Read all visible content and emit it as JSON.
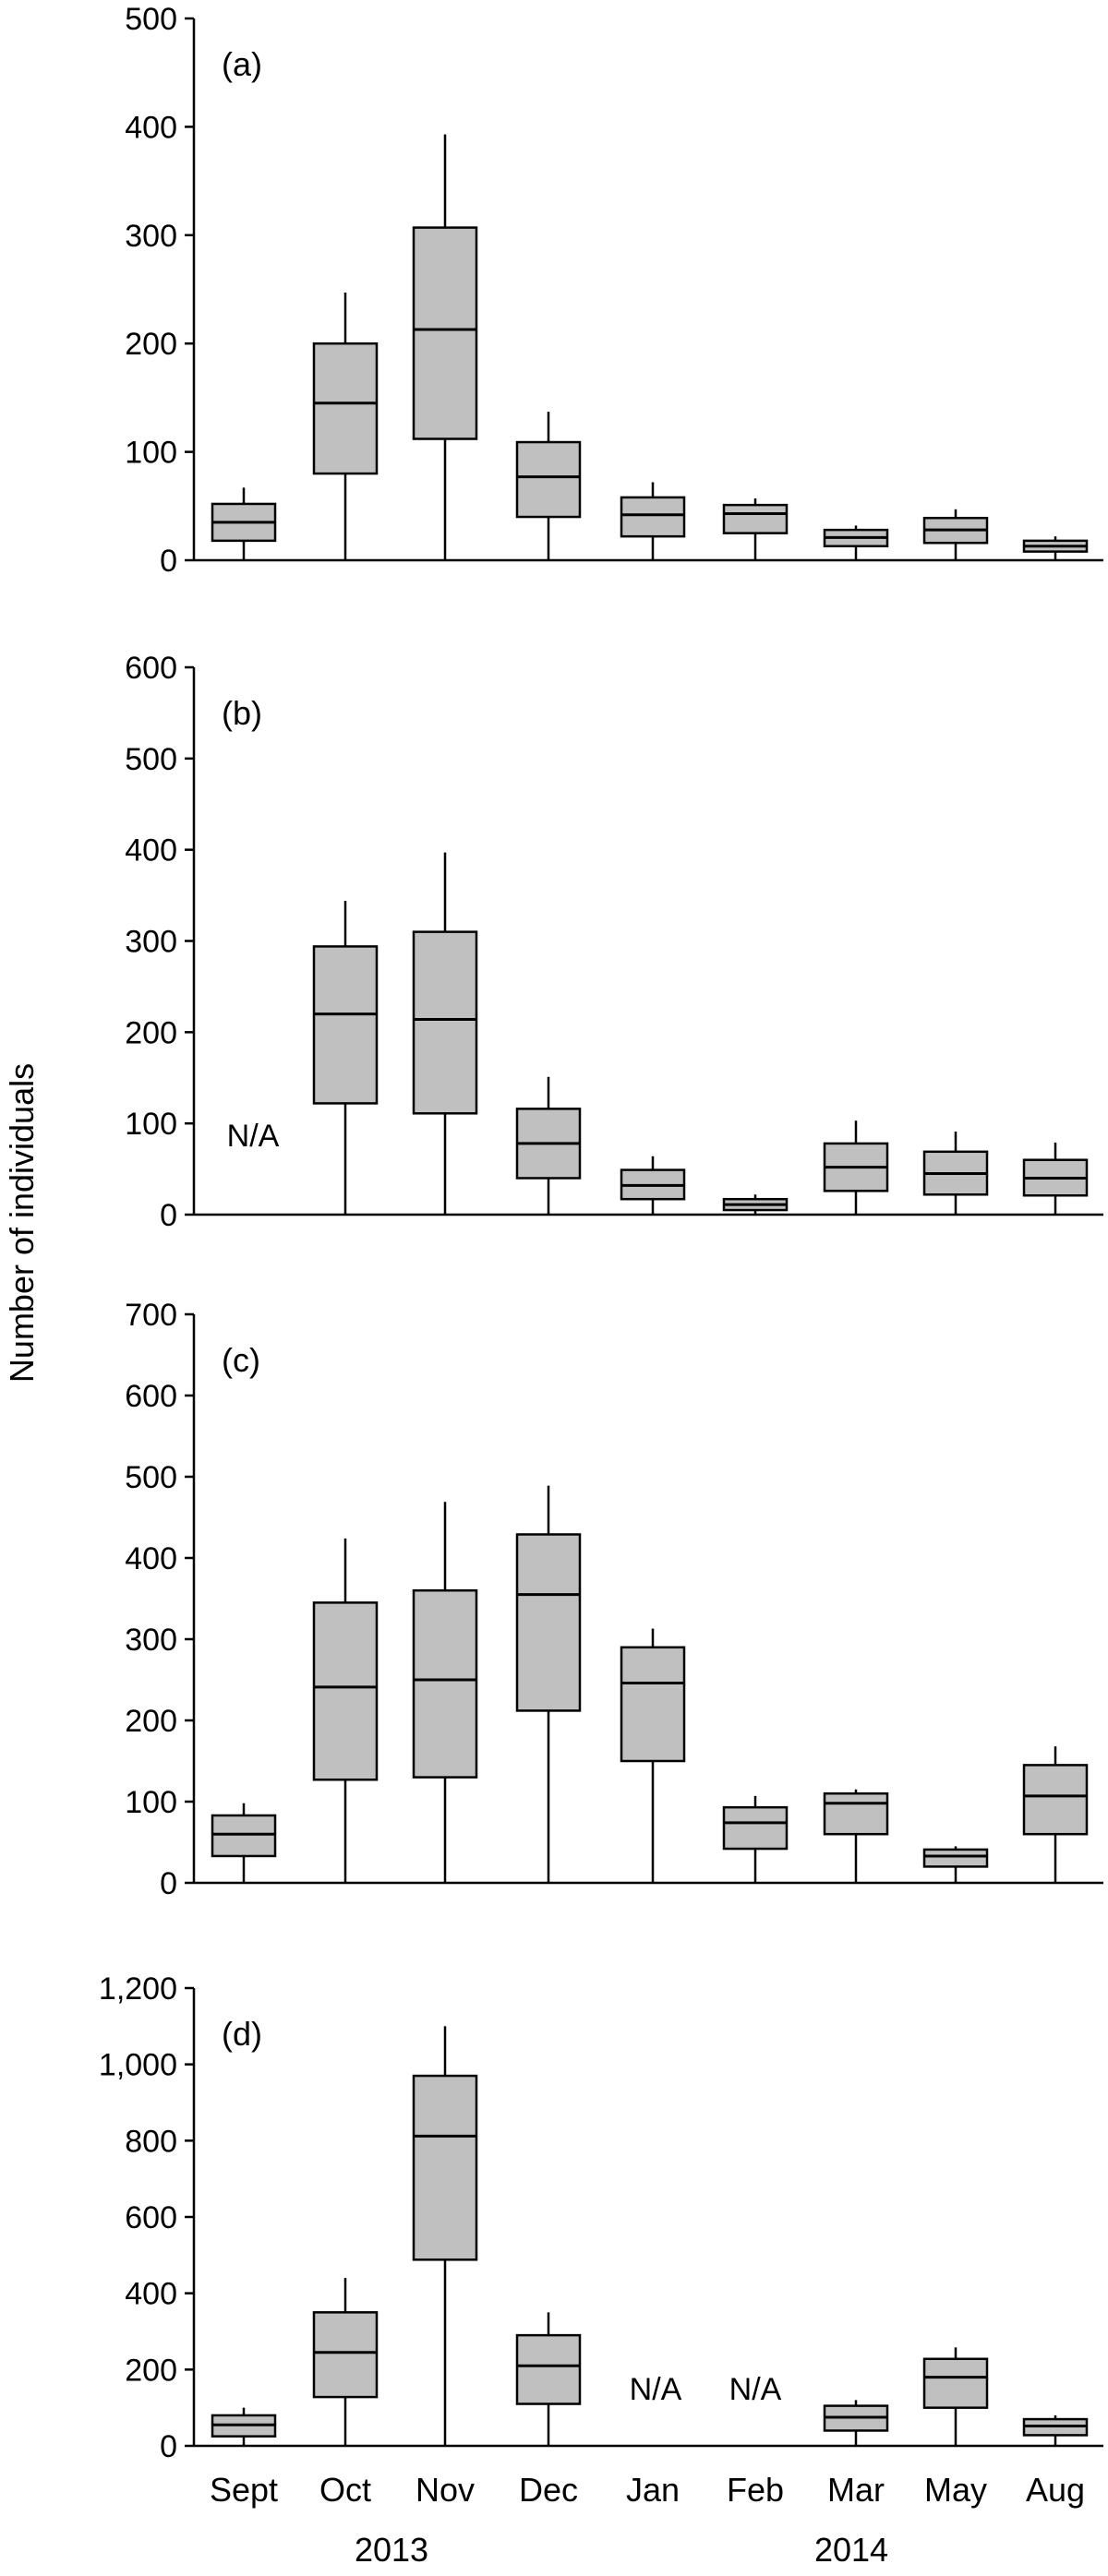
{
  "figure": {
    "ylabel": "Number of individuals",
    "year_labels": [
      "2013",
      "2014"
    ]
  },
  "chart_data": [
    {
      "type": "box",
      "panel_label": "(a)",
      "categories": [
        "Sept",
        "Oct",
        "Nov",
        "Dec",
        "Jan",
        "Feb",
        "Mar",
        "May",
        "Aug"
      ],
      "ylim": [
        0,
        500
      ],
      "yticks": [
        0,
        100,
        200,
        300,
        400,
        500
      ],
      "ytick_labels": [
        "0",
        "100",
        "200",
        "300",
        "400",
        "500"
      ],
      "boxes": [
        {
          "min": 0,
          "q1": 18,
          "median": 35,
          "q3": 52,
          "max": 67
        },
        {
          "min": 0,
          "q1": 80,
          "median": 145,
          "q3": 200,
          "max": 247
        },
        {
          "min": 0,
          "q1": 112,
          "median": 213,
          "q3": 307,
          "max": 393
        },
        {
          "min": 0,
          "q1": 40,
          "median": 77,
          "q3": 109,
          "max": 137
        },
        {
          "min": 0,
          "q1": 22,
          "median": 42,
          "q3": 58,
          "max": 72
        },
        {
          "min": 0,
          "q1": 25,
          "median": 43,
          "q3": 51,
          "max": 57
        },
        {
          "min": 0,
          "q1": 13,
          "median": 21,
          "q3": 28,
          "max": 32
        },
        {
          "min": 0,
          "q1": 16,
          "median": 28,
          "q3": 39,
          "max": 47
        },
        {
          "min": 0,
          "q1": 8,
          "median": 13,
          "q3": 18,
          "max": 22
        }
      ]
    },
    {
      "type": "box",
      "panel_label": "(b)",
      "categories": [
        "Sept",
        "Oct",
        "Nov",
        "Dec",
        "Jan",
        "Feb",
        "Mar",
        "May",
        "Aug"
      ],
      "ylim": [
        0,
        600
      ],
      "yticks": [
        0,
        100,
        200,
        300,
        400,
        500,
        600
      ],
      "ytick_labels": [
        "0",
        "100",
        "200",
        "300",
        "400",
        "500",
        "600"
      ],
      "na_label": "N/A",
      "boxes": [
        null,
        {
          "min": 0,
          "q1": 122,
          "median": 220,
          "q3": 294,
          "max": 344
        },
        {
          "min": 0,
          "q1": 111,
          "median": 214,
          "q3": 310,
          "max": 397
        },
        {
          "min": 0,
          "q1": 40,
          "median": 78,
          "q3": 116,
          "max": 151
        },
        {
          "min": 0,
          "q1": 17,
          "median": 32,
          "q3": 49,
          "max": 64
        },
        {
          "min": 0,
          "q1": 5,
          "median": 11,
          "q3": 17,
          "max": 22
        },
        {
          "min": 0,
          "q1": 26,
          "median": 52,
          "q3": 78,
          "max": 103
        },
        {
          "min": 0,
          "q1": 22,
          "median": 45,
          "q3": 69,
          "max": 91
        },
        {
          "min": 0,
          "q1": 21,
          "median": 40,
          "q3": 60,
          "max": 79
        }
      ]
    },
    {
      "type": "box",
      "panel_label": "(c)",
      "categories": [
        "Sept",
        "Oct",
        "Nov",
        "Dec",
        "Jan",
        "Feb",
        "Mar",
        "May",
        "Aug"
      ],
      "ylim": [
        0,
        700
      ],
      "yticks": [
        0,
        100,
        200,
        300,
        400,
        500,
        600,
        700
      ],
      "ytick_labels": [
        "0",
        "100",
        "200",
        "300",
        "400",
        "500",
        "600",
        "700"
      ],
      "boxes": [
        {
          "min": 0,
          "q1": 33,
          "median": 60,
          "q3": 83,
          "max": 98
        },
        {
          "min": 0,
          "q1": 127,
          "median": 241,
          "q3": 345,
          "max": 424
        },
        {
          "min": 0,
          "q1": 130,
          "median": 250,
          "q3": 360,
          "max": 469
        },
        {
          "min": 0,
          "q1": 212,
          "median": 355,
          "q3": 429,
          "max": 489
        },
        {
          "min": 0,
          "q1": 150,
          "median": 246,
          "q3": 290,
          "max": 313
        },
        {
          "min": 0,
          "q1": 42,
          "median": 74,
          "q3": 93,
          "max": 107
        },
        {
          "min": 0,
          "q1": 60,
          "median": 98,
          "q3": 110,
          "max": 115
        },
        {
          "min": 0,
          "q1": 20,
          "median": 33,
          "q3": 41,
          "max": 45
        },
        {
          "min": 0,
          "q1": 60,
          "median": 107,
          "q3": 145,
          "max": 168
        }
      ]
    },
    {
      "type": "box",
      "panel_label": "(d)",
      "categories": [
        "Sept",
        "Oct",
        "Nov",
        "Dec",
        "Jan",
        "Feb",
        "Mar",
        "May",
        "Aug"
      ],
      "ylim": [
        0,
        1200
      ],
      "yticks": [
        0,
        200,
        400,
        600,
        800,
        1000,
        1200
      ],
      "ytick_labels": [
        "0",
        "200",
        "400",
        "600",
        "800",
        "1,000",
        "1,200"
      ],
      "na_label": "N/A",
      "boxes": [
        {
          "min": 0,
          "q1": 25,
          "median": 55,
          "q3": 80,
          "max": 100
        },
        {
          "min": 0,
          "q1": 128,
          "median": 245,
          "q3": 350,
          "max": 440
        },
        {
          "min": 0,
          "q1": 488,
          "median": 812,
          "q3": 970,
          "max": 1100
        },
        {
          "min": 0,
          "q1": 110,
          "median": 210,
          "q3": 290,
          "max": 350
        },
        null,
        null,
        {
          "min": 0,
          "q1": 40,
          "median": 75,
          "q3": 105,
          "max": 120
        },
        {
          "min": 0,
          "q1": 100,
          "median": 180,
          "q3": 228,
          "max": 258
        },
        {
          "min": 0,
          "q1": 28,
          "median": 52,
          "q3": 70,
          "max": 80
        }
      ]
    }
  ]
}
